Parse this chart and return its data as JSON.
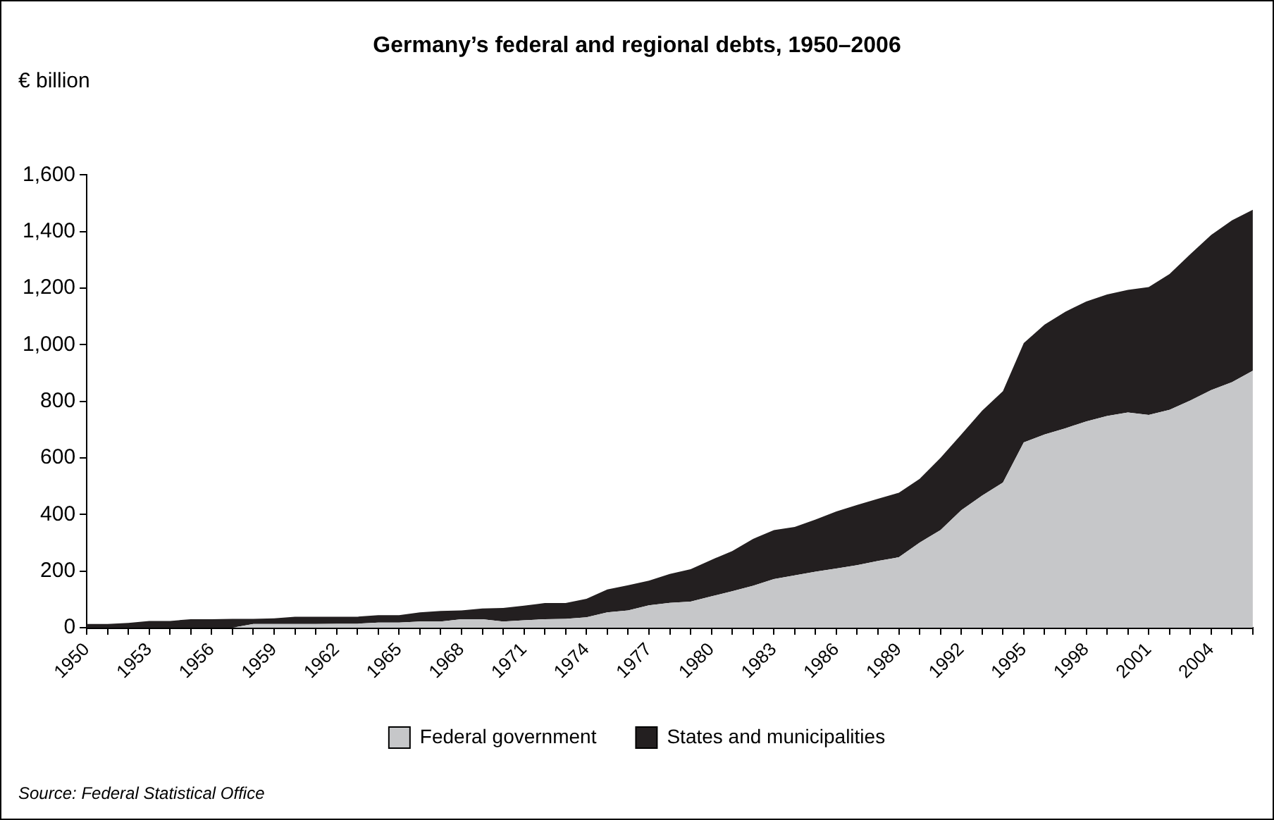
{
  "chart_data": {
    "type": "area",
    "title": "Germany’s federal and regional debts, 1950–2006",
    "ylabel": "€ billion",
    "categories": [
      "1950",
      null,
      null,
      "1953",
      null,
      null,
      "1956",
      null,
      null,
      "1959",
      null,
      null,
      "1962",
      null,
      null,
      "1965",
      null,
      null,
      "1968",
      null,
      null,
      "1971",
      null,
      null,
      "1974",
      null,
      null,
      "1977",
      null,
      null,
      "1980",
      null,
      null,
      "1983",
      null,
      null,
      "1986",
      null,
      null,
      "1989",
      null,
      null,
      "1992",
      null,
      null,
      "1995",
      null,
      null,
      "1998",
      null,
      null,
      "2001",
      null,
      null,
      "2004",
      null,
      null
    ],
    "series": [
      {
        "name": "Federal government",
        "color": "#c6c7c9",
        "values": [
          0,
          0,
          0,
          0,
          0,
          0,
          0,
          0,
          13,
          13,
          13,
          13,
          14,
          14,
          18,
          18,
          22,
          22,
          30,
          30,
          22,
          26,
          30,
          31,
          37,
          54,
          61,
          79,
          88,
          92,
          111,
          129,
          148,
          172,
          185,
          198,
          209,
          221,
          236,
          249,
          301,
          345,
          415,
          467,
          513,
          655,
          683,
          705,
          729,
          748,
          761,
          752,
          770,
          803,
          840,
          868,
          908
        ]
      },
      {
        "name": "States and municipalities",
        "color": "#231f20",
        "values": [
          13,
          13,
          17,
          24,
          24,
          30,
          30,
          31,
          18,
          20,
          26,
          26,
          25,
          25,
          26,
          26,
          32,
          37,
          31,
          38,
          48,
          52,
          57,
          56,
          65,
          81,
          89,
          87,
          102,
          115,
          129,
          142,
          166,
          173,
          171,
          184,
          202,
          213,
          220,
          228,
          225,
          255,
          268,
          300,
          323,
          351,
          388,
          412,
          424,
          430,
          433,
          452,
          480,
          517,
          548,
          572,
          569
        ]
      }
    ],
    "stacked": true,
    "ylim": [
      0,
      1600
    ],
    "yticks": [
      0,
      {
        "value": 200,
        "label": "200"
      },
      {
        "value": 400,
        "label": "400"
      },
      {
        "value": 600,
        "label": "600"
      },
      {
        "value": 800,
        "label": "800"
      },
      {
        "value": 1000,
        "label": "1,000"
      },
      {
        "value": 1200,
        "label": "1,200"
      },
      {
        "value": 1400,
        "label": "1,400"
      },
      {
        "value": 1600,
        "label": "1,600"
      }
    ],
    "legend": "bottom",
    "annotations": [
      "Source: Federal Statistical Office"
    ]
  }
}
